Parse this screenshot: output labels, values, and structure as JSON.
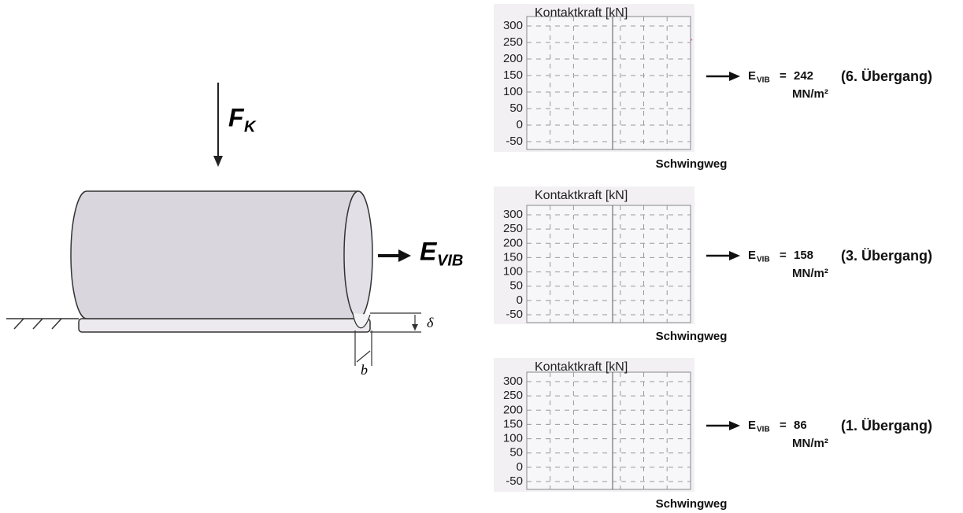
{
  "left": {
    "force_symbol": "F",
    "force_subscript": "K",
    "modulus_symbol": "E",
    "modulus_subscript": "VIB",
    "delta": "δ",
    "width": "b"
  },
  "plots": [
    {
      "title": "Kontaktkraft [kN]",
      "yticks": [
        300,
        250,
        200,
        150,
        100,
        50,
        0,
        -50
      ],
      "x_label": "Schwingweg",
      "result": {
        "symbol": "E",
        "subscript": "VIB",
        "equals": "=",
        "value": 242,
        "unit": "MN/m²",
        "note": "(6. Übergang)"
      }
    },
    {
      "title": "Kontaktkraft [kN]",
      "yticks": [
        300,
        250,
        200,
        150,
        100,
        50,
        0,
        -50
      ],
      "x_label": "Schwingweg",
      "result": {
        "symbol": "E",
        "subscript": "VIB",
        "equals": "=",
        "value": 158,
        "unit": "MN/m²",
        "note": "(3. Übergang)"
      }
    },
    {
      "title": "Kontaktkraft [kN]",
      "yticks": [
        300,
        250,
        200,
        150,
        100,
        50,
        0,
        -50
      ],
      "x_label": "Schwingweg",
      "result": {
        "symbol": "E",
        "subscript": "VIB",
        "equals": "=",
        "value": 86,
        "unit": "MN/m²",
        "note": "(1. Übergang)"
      }
    }
  ]
}
